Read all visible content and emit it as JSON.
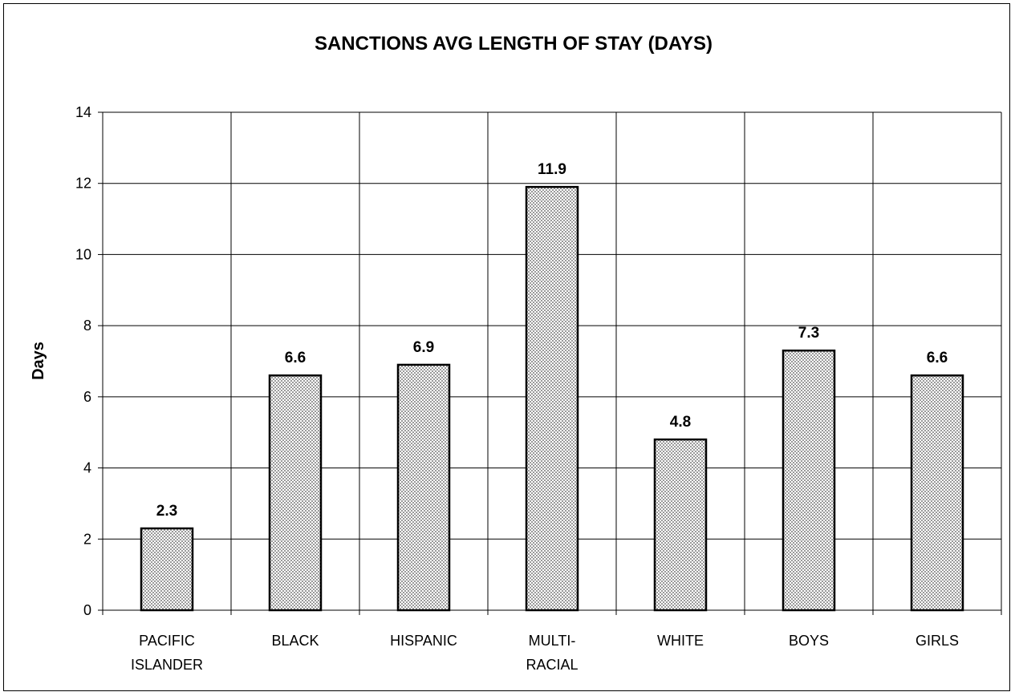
{
  "chart_data": {
    "type": "bar",
    "title": "SANCTIONS AVG LENGTH OF STAY (DAYS)",
    "xlabel": "",
    "ylabel": "Days",
    "ylim": [
      0,
      14
    ],
    "yticks": [
      0,
      2,
      4,
      6,
      8,
      10,
      12,
      14
    ],
    "grid": true,
    "categories": [
      [
        "PACIFIC",
        "ISLANDER"
      ],
      [
        "BLACK"
      ],
      [
        "HISPANIC"
      ],
      [
        "MULTI-",
        "RACIAL"
      ],
      [
        "WHITE"
      ],
      [
        "BOYS"
      ],
      [
        "GIRLS"
      ]
    ],
    "values": [
      2.3,
      6.6,
      6.9,
      11.9,
      4.8,
      7.3,
      6.6
    ],
    "data_labels": [
      "2.3",
      "6.6",
      "6.9",
      "11.9",
      "4.8",
      "7.3",
      "6.6"
    ],
    "colors": {
      "bar_fill_light": "#ffffff",
      "bar_fill_dark": "#9a9a9a",
      "bar_edge": "#000000",
      "grid": "#000000"
    }
  }
}
